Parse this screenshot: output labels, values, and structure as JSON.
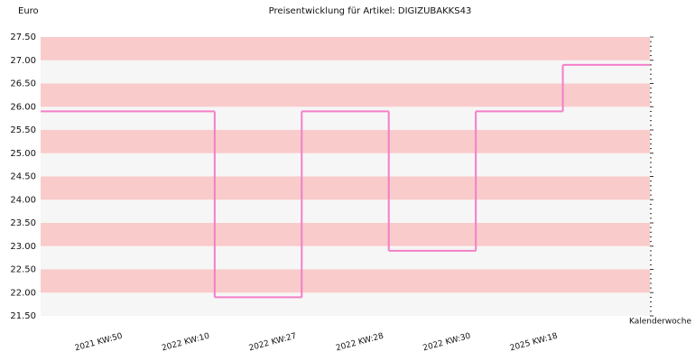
{
  "chart_data": {
    "type": "step",
    "title": "Preisentwicklung für Artikel: DIGIZUBAKKS43",
    "y_label": "Euro",
    "x_label": "Kalenderwoche",
    "categories": [
      "2021 KW:50",
      "2022 KW:10",
      "2022 KW:27",
      "2022 KW:28",
      "2022 KW:30",
      "2025 KW:18"
    ],
    "values": [
      25.9,
      21.9,
      25.9,
      22.9,
      25.9,
      26.9
    ],
    "color": "#f37fc8",
    "band_colors": [
      "#f9cbcb",
      "#f6f6f6"
    ],
    "ylim": [
      21.5,
      27.5
    ],
    "yticks": [
      {
        "value": 21.5,
        "label": "21.50"
      },
      {
        "value": 22,
        "label": "22.00"
      },
      {
        "value": 22.5,
        "label": "22.50"
      },
      {
        "value": 23,
        "label": "23.00"
      },
      {
        "value": 23.5,
        "label": "23.50"
      },
      {
        "value": 24,
        "label": "24.00"
      },
      {
        "value": 24.5,
        "label": "24.50"
      },
      {
        "value": 25,
        "label": "25.00"
      },
      {
        "value": 25.5,
        "label": "25.50"
      },
      {
        "value": 26,
        "label": "26.00"
      },
      {
        "value": 26.5,
        "label": "26.50"
      },
      {
        "value": 27,
        "label": "27.00"
      },
      {
        "value": 27.5,
        "label": "27.50"
      }
    ]
  }
}
